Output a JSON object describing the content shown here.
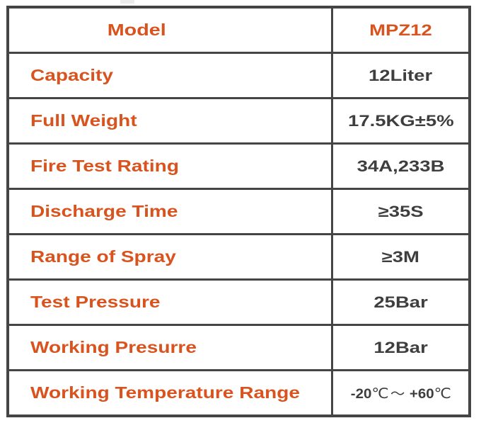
{
  "page": {
    "background": "#ffffff"
  },
  "table": {
    "border_color": "#454545",
    "label_color": "#d8531e",
    "value_color": "#3e3e3e",
    "header": {
      "label": "Model",
      "value": "MPZ12"
    },
    "rows": [
      {
        "label": "Capacity",
        "value": "12Liter"
      },
      {
        "label": "Full Weight",
        "value": "17.5KG±5%"
      },
      {
        "label": "Fire Test Rating",
        "value": "34A,233B"
      },
      {
        "label": "Discharge Time",
        "value": "≥35S"
      },
      {
        "label": "Range of Spray",
        "value": "≥3M"
      },
      {
        "label": "Test Pressure",
        "value": "25Bar"
      },
      {
        "label": "Working Presurre",
        "value": "12Bar"
      },
      {
        "label": "Working Temperature Range",
        "value": "-20℃～ +60℃",
        "value_parts": {
          "low": "-20",
          "deg_low": "℃",
          "tilde": "～",
          "high": "+60",
          "deg_high": "℃"
        }
      }
    ]
  },
  "chart_data": {
    "type": "table",
    "columns": [
      "Model",
      "MPZ12"
    ],
    "rows": [
      [
        "Capacity",
        "12Liter"
      ],
      [
        "Full Weight",
        "17.5KG±5%"
      ],
      [
        "Fire Test Rating",
        "34A,233B"
      ],
      [
        "Discharge Time",
        "≥35S"
      ],
      [
        "Range of Spray",
        "≥3M"
      ],
      [
        "Test Pressure",
        "25Bar"
      ],
      [
        "Working Presurre",
        "12Bar"
      ],
      [
        "Working Temperature Range",
        "-20℃～ +60℃"
      ]
    ]
  }
}
